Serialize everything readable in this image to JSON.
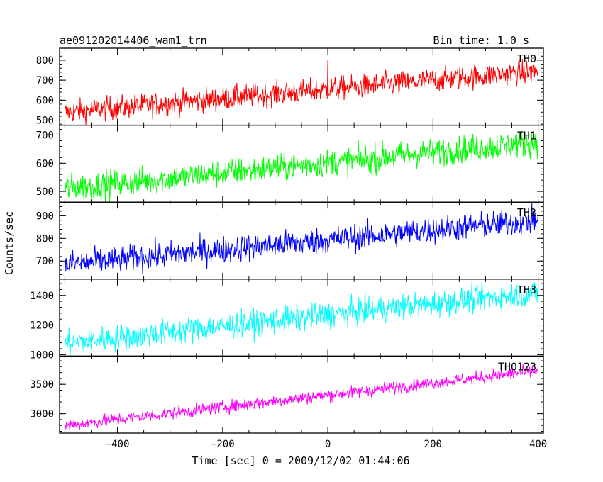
{
  "chart_data": {
    "type": "line",
    "title": "ae091202014406_wam1_trn",
    "subtitle": "Bin time: 1.0 s",
    "xlabel": "Time [sec] 0 = 2009/12/02 01:44:06",
    "ylabel": "Counts/sec",
    "xlim": [
      -510,
      410
    ],
    "xticks": [
      -400,
      -200,
      0,
      200,
      400
    ],
    "xtick_labels": [
      "−400",
      "−200",
      "0",
      "200",
      "400"
    ],
    "x_start": -500,
    "x_end": 400,
    "bin": 1.0,
    "panels": [
      {
        "name": "TH0",
        "color": "#ff0000",
        "ylim": [
          475,
          860
        ],
        "yticks": [
          500,
          600,
          700,
          800
        ],
        "ytick_labels": [
          "500",
          "600",
          "700",
          "800"
        ],
        "start": 540,
        "end": 745,
        "noise": 30,
        "spike": {
          "x": 0,
          "value": 800
        }
      },
      {
        "name": "TH1",
        "color": "#00ff00",
        "ylim": [
          462,
          735
        ],
        "yticks": [
          500,
          600,
          700
        ],
        "ytick_labels": [
          "500",
          "600",
          "700"
        ],
        "start": 510,
        "end": 675,
        "noise": 25
      },
      {
        "name": "TH2",
        "color": "#0000ff",
        "ylim": [
          620,
          960
        ],
        "yticks": [
          700,
          800,
          900
        ],
        "ytick_labels": [
          "700",
          "800",
          "900"
        ],
        "start": 685,
        "end": 880,
        "noise": 30
      },
      {
        "name": "TH3",
        "color": "#00ffff",
        "ylim": [
          990,
          1510
        ],
        "yticks": [
          1000,
          1200,
          1400
        ],
        "ytick_labels": [
          "1000",
          "1200",
          "1400"
        ],
        "start": 1075,
        "end": 1420,
        "noise": 45
      },
      {
        "name": "TH0123",
        "color": "#ff00ff",
        "ylim": [
          2670,
          3980
        ],
        "yticks": [
          3000,
          3500
        ],
        "ytick_labels": [
          "3000",
          "3500"
        ],
        "start": 2800,
        "end": 3730,
        "noise": 55
      }
    ]
  }
}
